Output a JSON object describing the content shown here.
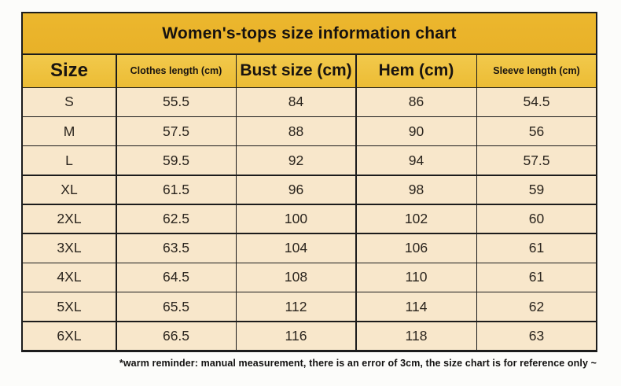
{
  "table": {
    "title": "Women's-tops size information chart",
    "columns": [
      {
        "label": "Size"
      },
      {
        "label": "Clothes length (cm)"
      },
      {
        "label": "Bust size (cm)"
      },
      {
        "label": "Hem (cm)"
      },
      {
        "label": "Sleeve length (cm)"
      }
    ],
    "rows": [
      {
        "size": "S",
        "clothes_length": "55.5",
        "bust": "84",
        "hem": "86",
        "sleeve": "54.5"
      },
      {
        "size": "M",
        "clothes_length": "57.5",
        "bust": "88",
        "hem": "90",
        "sleeve": "56"
      },
      {
        "size": "L",
        "clothes_length": "59.5",
        "bust": "92",
        "hem": "94",
        "sleeve": "57.5"
      },
      {
        "size": "XL",
        "clothes_length": "61.5",
        "bust": "96",
        "hem": "98",
        "sleeve": "59"
      },
      {
        "size": "2XL",
        "clothes_length": "62.5",
        "bust": "100",
        "hem": "102",
        "sleeve": "60"
      },
      {
        "size": "3XL",
        "clothes_length": "63.5",
        "bust": "104",
        "hem": "106",
        "sleeve": "61"
      },
      {
        "size": "4XL",
        "clothes_length": "64.5",
        "bust": "108",
        "hem": "110",
        "sleeve": "61"
      },
      {
        "size": "5XL",
        "clothes_length": "65.5",
        "bust": "112",
        "hem": "114",
        "sleeve": "62"
      },
      {
        "size": "6XL",
        "clothes_length": "66.5",
        "bust": "116",
        "hem": "118",
        "sleeve": "63"
      }
    ]
  },
  "footer": {
    "note": "*warm reminder: manual measurement, there is an error of 3cm, the size chart is for reference only ~"
  },
  "colors": {
    "title_bar": "#e9b42c",
    "header_row": "#efc23e",
    "data_row": "#f8e7cb",
    "grid_border": "#1c1c1c",
    "text": "#241e18",
    "page_background": "#fcfcfa"
  },
  "chart_data": {
    "type": "table",
    "title": "Women's-tops size information chart",
    "columns": [
      "Size",
      "Clothes length (cm)",
      "Bust size (cm)",
      "Hem (cm)",
      "Sleeve length (cm)"
    ],
    "rows": [
      [
        "S",
        55.5,
        84,
        86,
        54.5
      ],
      [
        "M",
        57.5,
        88,
        90,
        56
      ],
      [
        "L",
        59.5,
        92,
        94,
        57.5
      ],
      [
        "XL",
        61.5,
        96,
        98,
        59
      ],
      [
        "2XL",
        62.5,
        100,
        102,
        60
      ],
      [
        "3XL",
        63.5,
        104,
        106,
        61
      ],
      [
        "4XL",
        64.5,
        108,
        110,
        61
      ],
      [
        "5XL",
        65.5,
        112,
        114,
        62
      ],
      [
        "6XL",
        66.5,
        116,
        118,
        63
      ]
    ],
    "note": "*warm reminder: manual measurement, there is an error of 3cm, the size chart is for reference only ~"
  }
}
